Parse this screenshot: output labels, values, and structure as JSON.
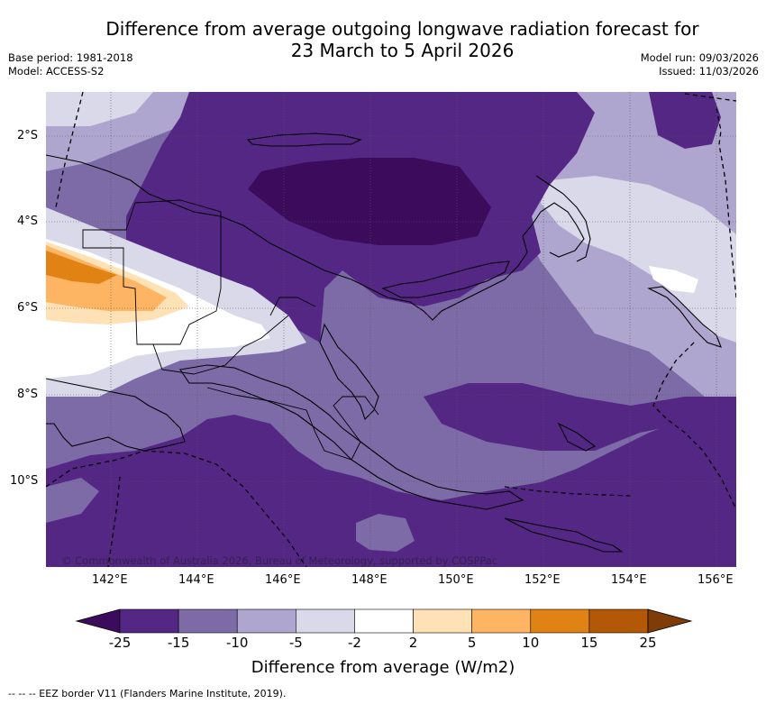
{
  "title": {
    "line1": "Difference from average outgoing longwave radiation forecast for",
    "line2": "23 March to 5 April 2026"
  },
  "meta": {
    "base_period": "Base period: 1981-2018",
    "model": "Model: ACCESS-S2",
    "model_run": "Model run: 09/03/2026",
    "issued": "Issued: 11/03/2026"
  },
  "map": {
    "lat_labels": [
      "2°S",
      "4°S",
      "6°S",
      "8°S",
      "10°S"
    ],
    "lon_labels": [
      "142°E",
      "144°E",
      "146°E",
      "148°E",
      "150°E",
      "152°E",
      "154°E",
      "156°E"
    ],
    "copyright": "© Commonwealth of Australia 2026, Bureau of Meteorology, supported by COSPPac"
  },
  "colorbar": {
    "tick_labels": [
      "-25",
      "-15",
      "-10",
      "-5",
      "-2",
      "2",
      "5",
      "10",
      "15",
      "25"
    ],
    "colors": [
      "#3d0b5b",
      "#542785",
      "#7c6ba7",
      "#aea6cf",
      "#d9d9ea",
      "#ffffff",
      "#fee2b6",
      "#fdb563",
      "#e08214",
      "#b35806",
      "#7f3b08"
    ],
    "label": "Difference from average (W/m2)"
  },
  "footer": {
    "legend_text": "-- -- -- EEZ border V11 (Flanders Marine Institute, 2019)."
  }
}
